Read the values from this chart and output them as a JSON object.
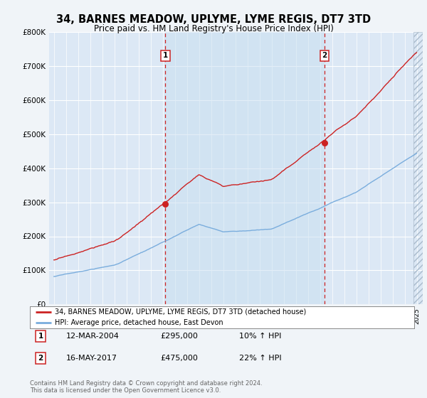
{
  "title": "34, BARNES MEADOW, UPLYME, LYME REGIS, DT7 3TD",
  "subtitle": "Price paid vs. HM Land Registry's House Price Index (HPI)",
  "legend_line1": "34, BARNES MEADOW, UPLYME, LYME REGIS, DT7 3TD (detached house)",
  "legend_line2": "HPI: Average price, detached house, East Devon",
  "sale1_label": "1",
  "sale1_date": "12-MAR-2004",
  "sale1_price": "£295,000",
  "sale1_hpi": "10% ↑ HPI",
  "sale1_year": 2004.21,
  "sale1_value": 295000,
  "sale2_label": "2",
  "sale2_date": "16-MAY-2017",
  "sale2_price": "£475,000",
  "sale2_hpi": "22% ↑ HPI",
  "sale2_year": 2017.37,
  "sale2_value": 475000,
  "ylim": [
    0,
    800000
  ],
  "yticks": [
    0,
    100000,
    200000,
    300000,
    400000,
    500000,
    600000,
    700000,
    800000
  ],
  "ytick_labels": [
    "£0",
    "£100K",
    "£200K",
    "£300K",
    "£400K",
    "£500K",
    "£600K",
    "£700K",
    "£800K"
  ],
  "xlim_start": 1994.6,
  "xlim_end": 2025.5,
  "background_color": "#f0f4f8",
  "plot_bg_color": "#dce8f5",
  "grid_color": "#ffffff",
  "red_color": "#cc2222",
  "blue_color": "#7aaddd",
  "shade_color": "#dce8f5",
  "hatch_start": 2024.75,
  "footnote": "Contains HM Land Registry data © Crown copyright and database right 2024.\nThis data is licensed under the Open Government Licence v3.0."
}
